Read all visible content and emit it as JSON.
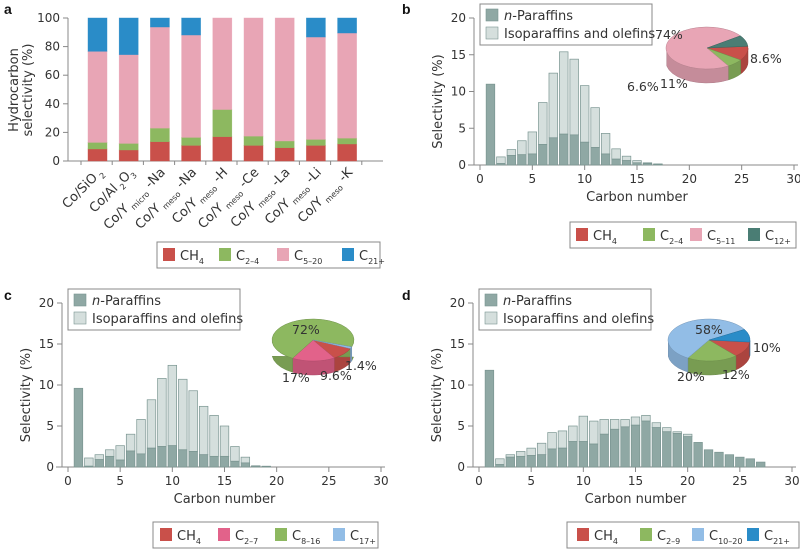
{
  "colors": {
    "n_paraffin": "#8fa8a4",
    "iso_olefin": "#d5dfdd",
    "bar_stroke": "#7a9591",
    "axis": "#888888",
    "ch4": "#c9504a",
    "c2": "#8db860",
    "c5": "#e8a5b5",
    "c21": "#2a8cc8",
    "c12": "#4a7d74",
    "c2_7": "#e2628a",
    "c17": "#92bde6",
    "c10_20": "#92bde6"
  },
  "chart_data": [
    {
      "panel": "a",
      "type": "bar",
      "stacked": true,
      "ylabel": "Hydrocarbon selectivity (%)",
      "ylabel_lines": [
        "Hydrocarbon",
        "selectivity (%)"
      ],
      "ylim": [
        0,
        100
      ],
      "yticks": [
        0,
        20,
        40,
        60,
        80,
        100
      ],
      "categories": [
        {
          "main": "Co/SiO",
          "sub": "2",
          "suffix": ""
        },
        {
          "main": "Co/Al",
          "sub": "2",
          "mid": "O",
          "sub2": "3",
          "suffix": ""
        },
        {
          "main": "Co/Y",
          "sub": "micro",
          "suffix": "-Na"
        },
        {
          "main": "Co/Y",
          "sub": "meso",
          "suffix": "-Na"
        },
        {
          "main": "Co/Y",
          "sub": "meso",
          "suffix": "-H"
        },
        {
          "main": "Co/Y",
          "sub": "meso",
          "suffix": "-Ce"
        },
        {
          "main": "Co/Y",
          "sub": "meso",
          "suffix": "-La"
        },
        {
          "main": "Co/Y",
          "sub": "meso",
          "suffix": "-Li"
        },
        {
          "main": "Co/Y",
          "sub": "meso",
          "suffix": "-K"
        }
      ],
      "series": [
        {
          "name": "CH4",
          "label": "CH",
          "sub": "4",
          "color_key": "ch4",
          "values": [
            8.4,
            7.7,
            13.5,
            10.9,
            17.0,
            10.9,
            9.3,
            10.9,
            11.9
          ]
        },
        {
          "name": "C2-4",
          "label": "C",
          "sub": "2–4",
          "color_key": "c2",
          "values": [
            4.6,
            4.6,
            9.5,
            5.6,
            19.0,
            6.5,
            4.7,
            4.2,
            4.1
          ]
        },
        {
          "name": "C5-20",
          "label": "C",
          "sub": "5–20",
          "color_key": "c5",
          "values": [
            63.7,
            62.1,
            70.7,
            71.6,
            64.0,
            82.6,
            86.0,
            71.6,
            73.5
          ]
        },
        {
          "name": "C21+",
          "label": "C",
          "sub": "21+",
          "color_key": "c21",
          "values": [
            23.3,
            25.6,
            6.3,
            11.9,
            0,
            0,
            0,
            13.3,
            10.5
          ]
        }
      ]
    },
    {
      "panel": "b",
      "type": "bar",
      "stacked": "overlay",
      "xlabel": "Carbon number",
      "ylabel": "Selectivity (%)",
      "xlim": [
        0,
        30
      ],
      "ylim": [
        0,
        20
      ],
      "xticks": [
        0,
        5,
        10,
        15,
        20,
        25,
        30
      ],
      "yticks": [
        0,
        5,
        10,
        15,
        20
      ],
      "legend": [
        "n-Paraffins",
        "Isoparaffins and olefins"
      ],
      "x": [
        1,
        2,
        3,
        4,
        5,
        6,
        7,
        8,
        9,
        10,
        11,
        12,
        13,
        14,
        15,
        16,
        17
      ],
      "total": [
        11.0,
        1.1,
        2.1,
        3.3,
        4.5,
        8.5,
        12.5,
        15.4,
        14.4,
        10.8,
        7.8,
        4.3,
        2.2,
        1.2,
        0.6,
        0.3,
        0.15
      ],
      "n_paraffins": [
        11.0,
        0.2,
        1.3,
        1.4,
        1.5,
        2.8,
        3.7,
        4.2,
        4.1,
        3.1,
        2.4,
        1.5,
        0.8,
        0.6,
        0.3,
        0.2,
        0.1
      ],
      "pie": {
        "slices": [
          {
            "name": "CH4",
            "value": 11,
            "label": "11%",
            "color_key": "ch4"
          },
          {
            "name": "C2-4",
            "value": 6.6,
            "label": "6.6%",
            "color_key": "c2"
          },
          {
            "name": "C5-11",
            "value": 74,
            "label": "74%",
            "color_key": "c5"
          },
          {
            "name": "C12+",
            "value": 8.6,
            "label": "8.6%",
            "color_key": "c12"
          }
        ]
      },
      "legend_bottom": [
        {
          "label": "CH",
          "sub": "4",
          "color_key": "ch4"
        },
        {
          "label": "C",
          "sub": "2–4",
          "color_key": "c2"
        },
        {
          "label": "C",
          "sub": "5–11",
          "color_key": "c5"
        },
        {
          "label": "C",
          "sub": "12+",
          "color_key": "c12"
        }
      ]
    },
    {
      "panel": "c",
      "type": "bar",
      "stacked": "overlay",
      "xlabel": "Carbon number",
      "ylabel": "Selectivity (%)",
      "xlim": [
        0,
        30
      ],
      "ylim": [
        0,
        20
      ],
      "xticks": [
        0,
        5,
        10,
        15,
        20,
        25,
        30
      ],
      "yticks": [
        0,
        5,
        10,
        15,
        20
      ],
      "legend": [
        "n-Paraffins",
        "Isoparaffins and olefins"
      ],
      "x": [
        1,
        2,
        3,
        4,
        5,
        6,
        7,
        8,
        9,
        10,
        11,
        12,
        13,
        14,
        15,
        16,
        17,
        18,
        19
      ],
      "total": [
        9.6,
        1.1,
        1.5,
        2.1,
        2.6,
        4.0,
        5.8,
        8.2,
        10.8,
        12.4,
        10.7,
        9.3,
        7.4,
        6.3,
        5.0,
        2.5,
        1.2,
        0.15,
        0.1
      ],
      "n_paraffins": [
        9.6,
        0.1,
        0.9,
        1.3,
        0.85,
        1.95,
        1.6,
        2.3,
        2.5,
        2.6,
        2.1,
        1.9,
        1.5,
        1.3,
        1.3,
        0.7,
        0.5,
        0.1,
        0.05
      ],
      "pie": {
        "slices": [
          {
            "name": "CH4",
            "value": 9.6,
            "label": "9.6%",
            "color_key": "ch4"
          },
          {
            "name": "C2-7",
            "value": 17,
            "label": "17%",
            "color_key": "c2_7"
          },
          {
            "name": "C8-16",
            "value": 72,
            "label": "72%",
            "color_key": "c2"
          },
          {
            "name": "C17+",
            "value": 1.4,
            "label": "1.4%",
            "color_key": "c17"
          }
        ]
      },
      "legend_bottom": [
        {
          "label": "CH",
          "sub": "4",
          "color_key": "ch4"
        },
        {
          "label": "C",
          "sub": "2–7",
          "color_key": "c2_7"
        },
        {
          "label": "C",
          "sub": "8–16",
          "color_key": "c2"
        },
        {
          "label": "C",
          "sub": "17+",
          "color_key": "c17"
        }
      ]
    },
    {
      "panel": "d",
      "type": "bar",
      "stacked": "overlay",
      "xlabel": "Carbon number",
      "ylabel": "Selectivity (%)",
      "xlim": [
        0,
        30
      ],
      "ylim": [
        0,
        20
      ],
      "xticks": [
        0,
        5,
        10,
        15,
        20,
        25,
        30
      ],
      "yticks": [
        0,
        5,
        10,
        15,
        20
      ],
      "legend": [
        "n-Paraffins",
        "Isoparaffins and olefins"
      ],
      "x": [
        1,
        2,
        3,
        4,
        5,
        6,
        7,
        8,
        9,
        10,
        11,
        12,
        13,
        14,
        15,
        16,
        17,
        18,
        19,
        20,
        21,
        22,
        23,
        24,
        25,
        26,
        27
      ],
      "total": [
        11.8,
        1.0,
        1.5,
        1.9,
        2.3,
        2.9,
        4.2,
        4.4,
        5.0,
        6.2,
        5.6,
        5.8,
        5.8,
        5.8,
        6.1,
        6.3,
        5.4,
        4.8,
        4.3,
        4.0,
        3.0,
        2.1,
        1.8,
        1.5,
        1.2,
        1.0,
        0.6
      ],
      "n_paraffins": [
        11.8,
        0.3,
        1.2,
        1.3,
        1.4,
        1.5,
        2.2,
        2.3,
        3.1,
        3.1,
        2.8,
        4.0,
        4.6,
        4.9,
        5.1,
        5.6,
        4.8,
        4.3,
        4.1,
        3.7,
        3.0,
        2.1,
        1.8,
        1.5,
        1.2,
        1.0,
        0.6
      ],
      "pie": {
        "slices": [
          {
            "name": "CH4",
            "value": 12,
            "label": "12%",
            "color_key": "ch4"
          },
          {
            "name": "C2-9",
            "value": 20,
            "label": "20%",
            "color_key": "c2"
          },
          {
            "name": "C10-20",
            "value": 58,
            "label": "58%",
            "color_key": "c10_20"
          },
          {
            "name": "C21+",
            "value": 10,
            "label": "10%",
            "color_key": "c21"
          }
        ]
      },
      "legend_bottom": [
        {
          "label": "CH",
          "sub": "4",
          "color_key": "ch4"
        },
        {
          "label": "C",
          "sub": "2–9",
          "color_key": "c2"
        },
        {
          "label": "C",
          "sub": "10–20",
          "color_key": "c10_20"
        },
        {
          "label": "C",
          "sub": "21+",
          "color_key": "c21"
        }
      ]
    }
  ],
  "panel_labels": [
    "a",
    "b",
    "c",
    "d"
  ]
}
